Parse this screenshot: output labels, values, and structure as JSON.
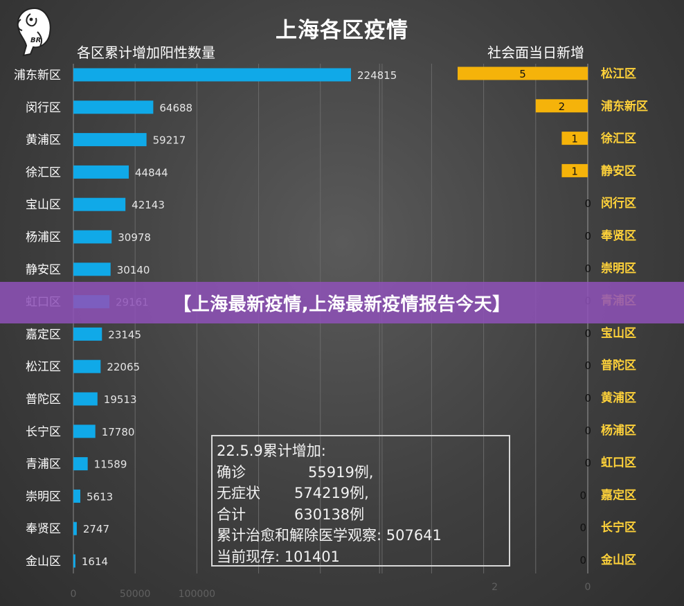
{
  "page": {
    "title": "上海各区疫情",
    "left_subtitle": "各区累计增加阳性数量",
    "right_subtitle": "社会面当日新增",
    "banner": "【上海最新疫情,上海最新疫情报告今天】",
    "logo_text": "BR"
  },
  "stats": {
    "heading": "22.5.9累计增加:",
    "rows": [
      {
        "label": "确诊",
        "value": "55919例,"
      },
      {
        "label": "无症状",
        "value": "574219例,"
      },
      {
        "label": "合计",
        "value": "630138例"
      }
    ],
    "recovered": "累计治愈和解除医学观察: 507641",
    "current": "当前现存: 101401"
  },
  "colors": {
    "left_bar": "#10a9e8",
    "right_bar": "#f5b30a",
    "right_label": "#ffd23a",
    "banner": "#8e52b8"
  },
  "chart_data": [
    {
      "type": "bar",
      "orientation": "horizontal",
      "categories": [
        "浦东新区",
        "闵行区",
        "黄浦区",
        "徐汇区",
        "宝山区",
        "杨浦区",
        "静安区",
        "虹口区",
        "嘉定区",
        "松江区",
        "普陀区",
        "长宁区",
        "青浦区",
        "崇明区",
        "奉贤区",
        "金山区"
      ],
      "values": [
        224815,
        64688,
        59217,
        44844,
        42143,
        30978,
        30140,
        29161,
        23145,
        22065,
        19513,
        17780,
        11589,
        5613,
        2747,
        1614
      ],
      "x_ticks": [
        "0",
        "50000",
        "100000"
      ],
      "xlim": [
        0,
        450000
      ],
      "grid": true
    },
    {
      "type": "bar",
      "orientation": "horizontal",
      "categories": [
        "松江区",
        "浦东新区",
        "徐汇区",
        "静安区",
        "闵行区",
        "奉贤区",
        "崇明区",
        "青浦区",
        "宝山区",
        "普陀区",
        "黄浦区",
        "杨浦区",
        "虹口区",
        "嘉定区",
        "长宁区",
        "金山区"
      ],
      "values": [
        5,
        2,
        1,
        1,
        0,
        0,
        0,
        0,
        0,
        0,
        0,
        0,
        0,
        0,
        0,
        0
      ],
      "x_ticks": [
        "2",
        "0"
      ],
      "xlim": [
        0,
        8
      ],
      "reversed": true,
      "grid": true
    }
  ]
}
